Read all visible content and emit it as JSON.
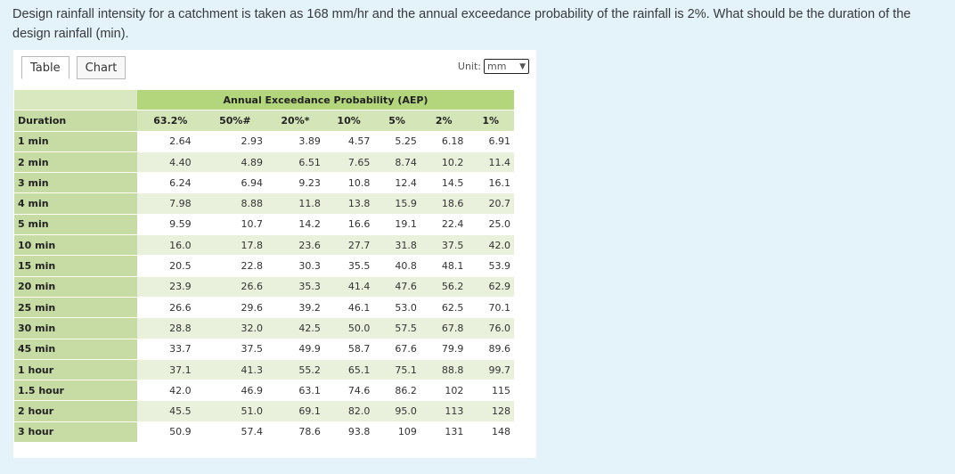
{
  "question": "Design rainfall intensity for a catchment is taken as 168 mm/hr and the annual exceedance probability of the rainfall is 2%. What should be the duration of the design rainfall (min).",
  "tabs": [
    {
      "label": "Table",
      "active": true
    },
    {
      "label": "Chart",
      "active": false
    }
  ],
  "unit": {
    "label": "Unit:",
    "selected": "mm"
  },
  "table": {
    "group_header": "Annual Exceedance Probability (AEP)",
    "duration_header": "Duration",
    "columns": [
      "63.2%",
      "50%#",
      "20%*",
      "10%",
      "5%",
      "2%",
      "1%"
    ],
    "rows": [
      {
        "duration": "1 min",
        "values": [
          "2.64",
          "2.93",
          "3.89",
          "4.57",
          "5.25",
          "6.18",
          "6.91"
        ]
      },
      {
        "duration": "2 min",
        "values": [
          "4.40",
          "4.89",
          "6.51",
          "7.65",
          "8.74",
          "10.2",
          "11.4"
        ]
      },
      {
        "duration": "3 min",
        "values": [
          "6.24",
          "6.94",
          "9.23",
          "10.8",
          "12.4",
          "14.5",
          "16.1"
        ]
      },
      {
        "duration": "4 min",
        "values": [
          "7.98",
          "8.88",
          "11.8",
          "13.8",
          "15.9",
          "18.6",
          "20.7"
        ]
      },
      {
        "duration": "5 min",
        "values": [
          "9.59",
          "10.7",
          "14.2",
          "16.6",
          "19.1",
          "22.4",
          "25.0"
        ]
      },
      {
        "duration": "10 min",
        "values": [
          "16.0",
          "17.8",
          "23.6",
          "27.7",
          "31.8",
          "37.5",
          "42.0"
        ]
      },
      {
        "duration": "15 min",
        "values": [
          "20.5",
          "22.8",
          "30.3",
          "35.5",
          "40.8",
          "48.1",
          "53.9"
        ]
      },
      {
        "duration": "20 min",
        "values": [
          "23.9",
          "26.6",
          "35.3",
          "41.4",
          "47.6",
          "56.2",
          "62.9"
        ]
      },
      {
        "duration": "25 min",
        "values": [
          "26.6",
          "29.6",
          "39.2",
          "46.1",
          "53.0",
          "62.5",
          "70.1"
        ]
      },
      {
        "duration": "30 min",
        "values": [
          "28.8",
          "32.0",
          "42.5",
          "50.0",
          "57.5",
          "67.8",
          "76.0"
        ]
      },
      {
        "duration": "45 min",
        "values": [
          "33.7",
          "37.5",
          "49.9",
          "58.7",
          "67.6",
          "79.9",
          "89.6"
        ]
      },
      {
        "duration": "1 hour",
        "values": [
          "37.1",
          "41.3",
          "55.2",
          "65.1",
          "75.1",
          "88.8",
          "99.7"
        ]
      },
      {
        "duration": "1.5 hour",
        "values": [
          "42.0",
          "46.9",
          "63.1",
          "74.6",
          "86.2",
          "102",
          "115"
        ]
      },
      {
        "duration": "2 hour",
        "values": [
          "45.5",
          "51.0",
          "69.1",
          "82.0",
          "95.0",
          "113",
          "128"
        ]
      },
      {
        "duration": "3 hour",
        "values": [
          "50.9",
          "57.4",
          "78.6",
          "93.8",
          "109",
          "131",
          "148"
        ]
      }
    ]
  }
}
